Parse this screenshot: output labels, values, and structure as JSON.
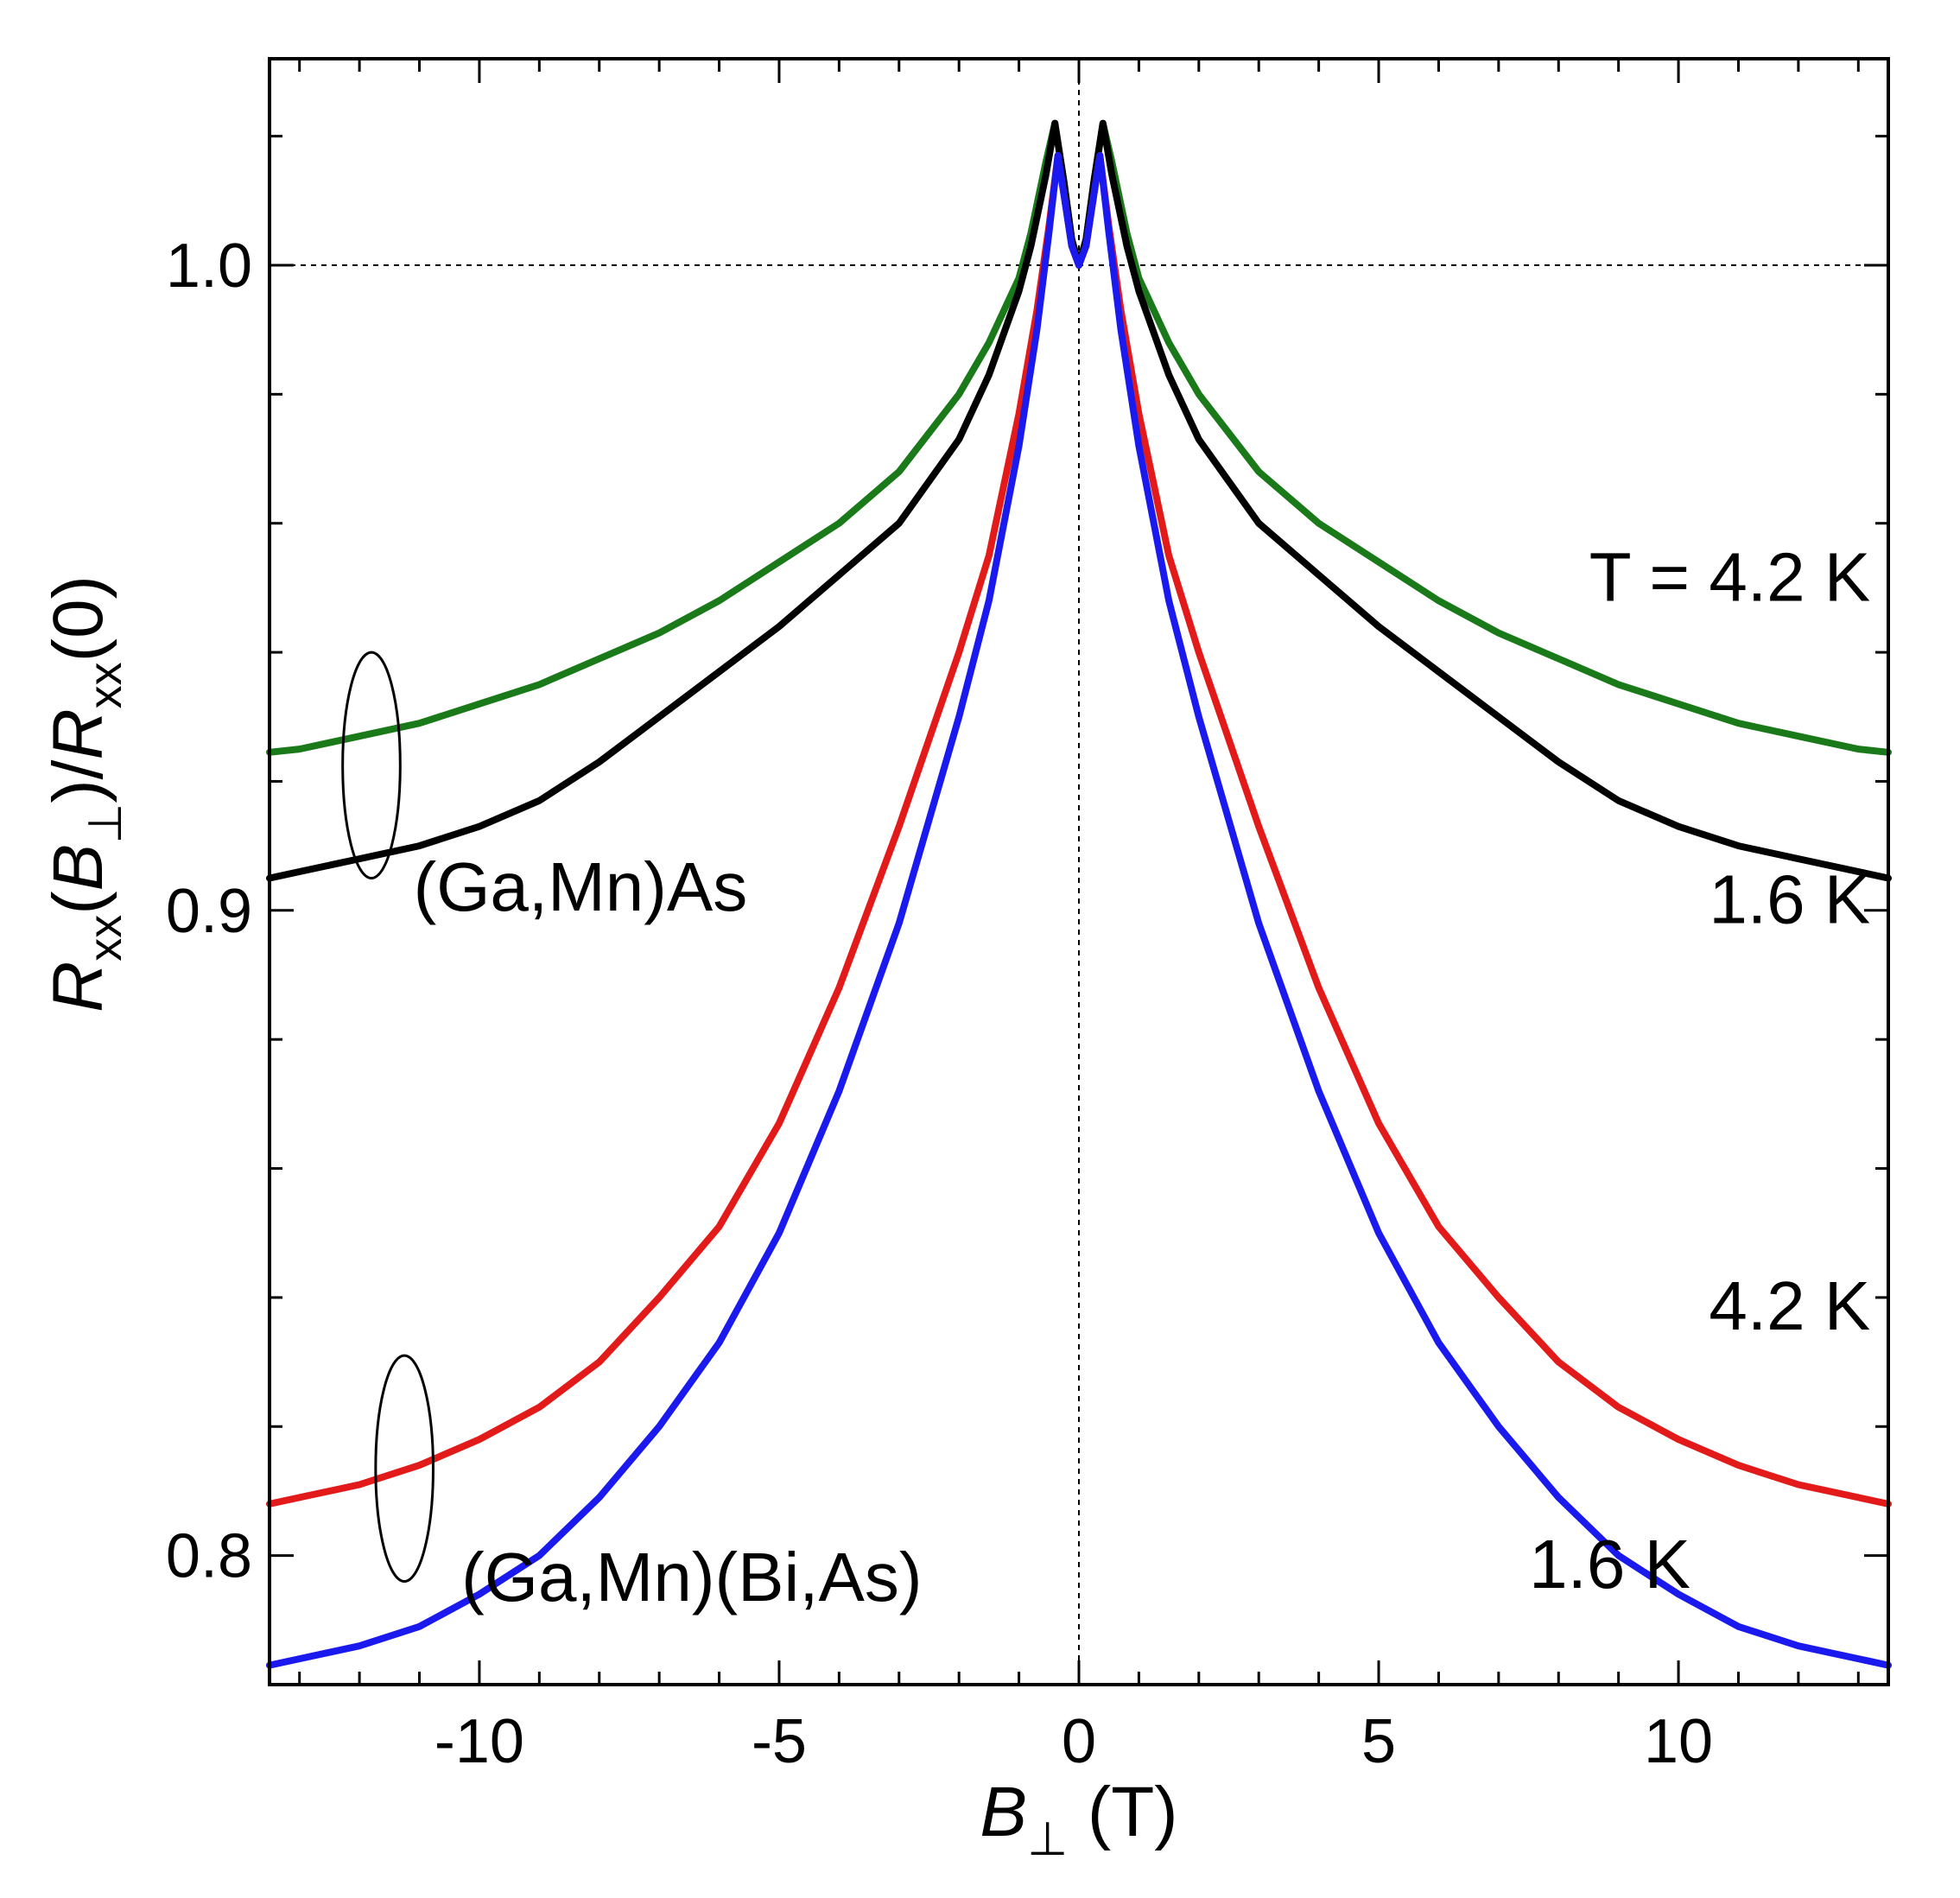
{
  "chart_data": {
    "type": "line",
    "xlabel": {
      "symbol": "B",
      "subscript": "⊥",
      "unit": "(T)"
    },
    "ylabel": {
      "parts": [
        {
          "t": "R",
          "i": true
        },
        {
          "t": "xx",
          "sub": true
        },
        {
          "t": "(",
          "i": false
        },
        {
          "t": "B",
          "i": true
        },
        {
          "t": "⊥",
          "sub": true
        },
        {
          "t": ")/",
          "i": false
        },
        {
          "t": "R",
          "i": true
        },
        {
          "t": "xx",
          "sub": true
        },
        {
          "t": "(0)",
          "i": false
        }
      ]
    },
    "xlim": [
      -13.5,
      13.5
    ],
    "ylim": [
      0.78,
      1.032
    ],
    "xticks": {
      "major": [
        -10,
        -5,
        0,
        5,
        10
      ],
      "labels": [
        "-10",
        "-5",
        "0",
        "5",
        "10"
      ],
      "minor_step": 1
    },
    "yticks": {
      "major": [
        0.8,
        0.9,
        1.0
      ],
      "labels": [
        "0.8",
        "0.9",
        "1.0"
      ],
      "minor_step": 0.02
    },
    "reference_lines": {
      "y": 1.0,
      "x": 0
    },
    "series": [
      {
        "color": "#1a7a1a",
        "points": [
          [
            0,
            1.0
          ],
          [
            0.12,
            1.004
          ],
          [
            0.25,
            1.013
          ],
          [
            0.4,
            1.022
          ],
          [
            0.55,
            1.016
          ],
          [
            0.8,
            1.005
          ],
          [
            1.0,
            0.998
          ],
          [
            1.5,
            0.988
          ],
          [
            2,
            0.98
          ],
          [
            3,
            0.968
          ],
          [
            4,
            0.96
          ],
          [
            5,
            0.954
          ],
          [
            6,
            0.948
          ],
          [
            7,
            0.943
          ],
          [
            8,
            0.939
          ],
          [
            9,
            0.935
          ],
          [
            10,
            0.932
          ],
          [
            11,
            0.929
          ],
          [
            12,
            0.927
          ],
          [
            13,
            0.925
          ],
          [
            13.5,
            0.9245
          ]
        ]
      },
      {
        "color": "#000000",
        "points": [
          [
            0,
            1.0
          ],
          [
            0.12,
            1.004
          ],
          [
            0.25,
            1.013
          ],
          [
            0.4,
            1.022
          ],
          [
            0.55,
            1.014
          ],
          [
            0.8,
            1.003
          ],
          [
            1.0,
            0.996
          ],
          [
            1.5,
            0.983
          ],
          [
            2,
            0.973
          ],
          [
            3,
            0.96
          ],
          [
            4,
            0.952
          ],
          [
            5,
            0.944
          ],
          [
            6,
            0.937
          ],
          [
            7,
            0.93
          ],
          [
            8,
            0.923
          ],
          [
            9,
            0.917
          ],
          [
            10,
            0.913
          ],
          [
            11,
            0.91
          ],
          [
            12,
            0.908
          ],
          [
            13,
            0.906
          ],
          [
            13.5,
            0.905
          ]
        ]
      },
      {
        "color": "#e31a1a",
        "points": [
          [
            0,
            1.0
          ],
          [
            0.12,
            1.003
          ],
          [
            0.25,
            1.011
          ],
          [
            0.35,
            1.017
          ],
          [
            0.5,
            1.006
          ],
          [
            0.7,
            0.993
          ],
          [
            1.0,
            0.977
          ],
          [
            1.5,
            0.955
          ],
          [
            2,
            0.94
          ],
          [
            3,
            0.913
          ],
          [
            4,
            0.888
          ],
          [
            5,
            0.867
          ],
          [
            6,
            0.851
          ],
          [
            7,
            0.84
          ],
          [
            8,
            0.83
          ],
          [
            9,
            0.823
          ],
          [
            10,
            0.818
          ],
          [
            11,
            0.814
          ],
          [
            12,
            0.811
          ],
          [
            13,
            0.809
          ],
          [
            13.5,
            0.808
          ]
        ]
      },
      {
        "color": "#1a1aee",
        "points": [
          [
            0,
            1.0
          ],
          [
            0.12,
            1.003
          ],
          [
            0.25,
            1.011
          ],
          [
            0.35,
            1.017
          ],
          [
            0.5,
            1.005
          ],
          [
            0.7,
            0.99
          ],
          [
            1.0,
            0.972
          ],
          [
            1.5,
            0.948
          ],
          [
            2,
            0.93
          ],
          [
            3,
            0.898
          ],
          [
            4,
            0.872
          ],
          [
            5,
            0.85
          ],
          [
            6,
            0.833
          ],
          [
            7,
            0.82
          ],
          [
            8,
            0.809
          ],
          [
            9,
            0.8
          ],
          [
            10,
            0.794
          ],
          [
            11,
            0.789
          ],
          [
            12,
            0.786
          ],
          [
            13,
            0.784
          ],
          [
            13.5,
            0.783
          ]
        ]
      }
    ],
    "annotations": [
      {
        "text": "T = 4.2 K",
        "x": 13.2,
        "y": 0.948,
        "anchor": "end"
      },
      {
        "text": "1.6 K",
        "x": 13.2,
        "y": 0.898,
        "anchor": "end"
      },
      {
        "text": "(Ga,Mn)As",
        "x": -11.1,
        "y": 0.9,
        "anchor": "start"
      },
      {
        "text": "4.2 K",
        "x": 13.2,
        "y": 0.835,
        "anchor": "end"
      },
      {
        "text": "1.6 K",
        "x": 10.2,
        "y": 0.795,
        "anchor": "end"
      },
      {
        "text": "(Ga,Mn)(Bi,As)",
        "x": -10.3,
        "y": 0.793,
        "anchor": "start"
      }
    ],
    "ellipses": [
      {
        "cx": -11.8,
        "cy": 0.9225,
        "rx": 0.48,
        "ry": 0.0175
      },
      {
        "cx": -11.25,
        "cy": 0.8135,
        "rx": 0.48,
        "ry": 0.0175
      }
    ]
  }
}
